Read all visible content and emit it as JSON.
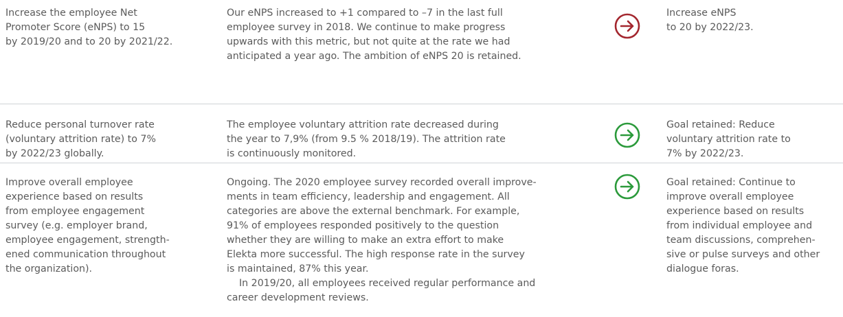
{
  "rows": [
    {
      "goal": [
        "Increase the employee Net",
        "Promoter Score (eNPS) to 15",
        "by 2019/20 and to 20 by 2021/22."
      ],
      "outcome": [
        [
          "Our eNPS increased to +1 compared to –7 in the last full",
          "employee survey in 2018. We continue to make progress",
          "upwards with this metric, but not quite at the rate we had",
          "anticipated a year ago. The ambition of eNPS 20 is retained."
        ]
      ],
      "new_goal": [
        "Increase eNPS",
        "to 20 by 2022/23."
      ]
    },
    {
      "goal": [
        "Reduce personal turnover rate",
        "(voluntary attrition rate) to 7%",
        "by 2022/23 globally."
      ],
      "outcome": [
        [
          "The employee voluntary attrition rate decreased during",
          "the year to 7,9% (from 9.5 % 2018/19). The attrition rate",
          "is continuously monitored."
        ]
      ],
      "new_goal": [
        "Goal retained: Reduce",
        "voluntary attrition rate to",
        "7% by 2022/23."
      ]
    },
    {
      "goal": [
        "Improve overall employee",
        "experience based on results",
        "from employee engagement",
        "survey (e.g. employer brand,",
        "employee engagement, strength-",
        "ened communication throughout",
        "the organization)."
      ],
      "outcome": [
        [
          "Ongoing. The 2020 employee survey recorded overall improve-",
          "ments in team efficiency, leadership and engagement. All",
          "categories are above the external benchmark. For example,",
          "91% of employees responded positively to the question",
          "whether they are willing to make an extra effort to make",
          "Elekta more successful. The high response rate in the survey",
          "is maintained, 87% this year."
        ],
        [
          "In 2019/20, all employees received regular performance and",
          "career development reviews."
        ]
      ],
      "new_goal": [
        "Goal retained: Continue to",
        "improve overall employee",
        "experience based on results",
        "from individual employee and",
        "team discussions, comprehen-",
        "sive or pulse surveys and other",
        "dialogue foras."
      ]
    }
  ]
}
